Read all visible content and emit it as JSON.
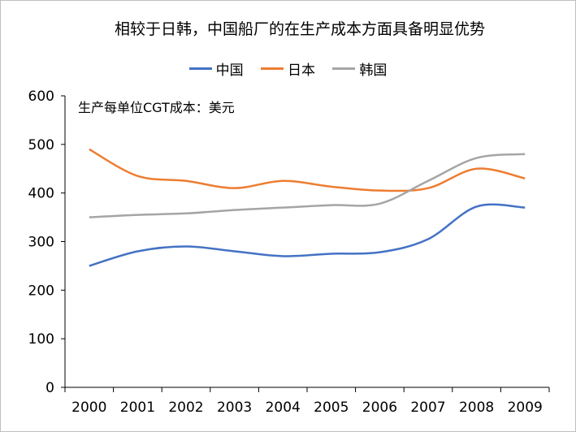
{
  "chart_data": {
    "type": "line",
    "title": "相较于日韩，中国船厂的在生产成本方面具备明显优势",
    "annotation": "生产每单位CGT成本：美元",
    "x": [
      "2000",
      "2001",
      "2002",
      "2003",
      "2004",
      "2005",
      "2006",
      "2007",
      "2008",
      "2009"
    ],
    "ylim": [
      0,
      600
    ],
    "yticks": [
      0,
      100,
      200,
      300,
      400,
      500,
      600
    ],
    "grid": false,
    "legend": "top",
    "series": [
      {
        "name": "中国",
        "color": "#4472c4",
        "values": [
          250,
          280,
          290,
          280,
          270,
          275,
          278,
          305,
          372,
          370
        ]
      },
      {
        "name": "日本",
        "color": "#ed7d31",
        "values": [
          490,
          435,
          425,
          410,
          425,
          413,
          405,
          410,
          450,
          430
        ]
      },
      {
        "name": "韩国",
        "color": "#a5a5a5",
        "values": [
          350,
          355,
          358,
          365,
          370,
          375,
          378,
          425,
          472,
          480
        ]
      }
    ]
  }
}
